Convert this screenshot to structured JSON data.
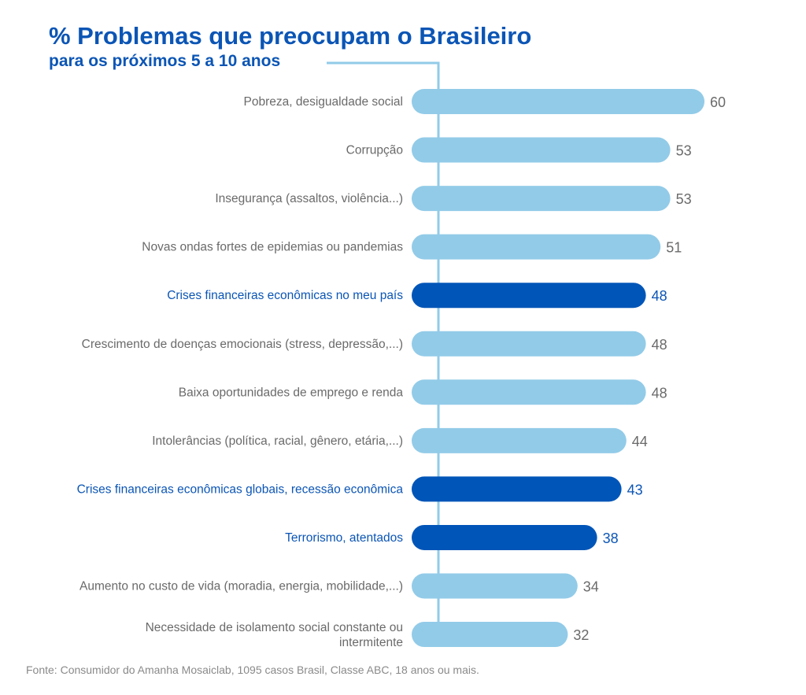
{
  "chart_data": {
    "type": "bar",
    "orientation": "horizontal",
    "title": "% Problemas que preocupam o Brasileiro",
    "subtitle": "para os próximos 5 a 10 anos",
    "source": "Fonte: Consumidor do Amanha Mosaiclab, 1095 casos Brasil, Classe ABC, 18 anos ou mais.",
    "xlim": [
      0,
      60
    ],
    "grid": false,
    "colors": {
      "default": "#92CBE8",
      "highlight": "#0055B8",
      "axis_line": "#92CBE8",
      "label": "#6a6a6a",
      "label_highlight": "#0B55B5"
    },
    "categories": [
      [
        "Pobreza, desigualdade social"
      ],
      [
        "Corrupção"
      ],
      [
        "Insegurança (assaltos, violência...)"
      ],
      [
        "Novas ondas fortes de epidemias ou pandemias"
      ],
      [
        "Crises financeiras econômicas no meu país"
      ],
      [
        "Crescimento de doenças emocionais (stress, depressão,...)"
      ],
      [
        "Baixa oportunidades de emprego e renda"
      ],
      [
        "Intolerâncias (política, racial, gênero, etária,...)"
      ],
      [
        "Crises financeiras econômicas globais, recessão econômica"
      ],
      [
        "Terrorismo, atentados"
      ],
      [
        "Aumento no custo de vida (moradia, energia, mobilidade,...)"
      ],
      [
        "Necessidade de isolamento social constante ou",
        "intermitente"
      ]
    ],
    "values": [
      60,
      53,
      53,
      51,
      48,
      48,
      48,
      44,
      43,
      38,
      34,
      32
    ],
    "highlighted": [
      false,
      false,
      false,
      false,
      true,
      false,
      false,
      false,
      true,
      true,
      false,
      false
    ]
  }
}
